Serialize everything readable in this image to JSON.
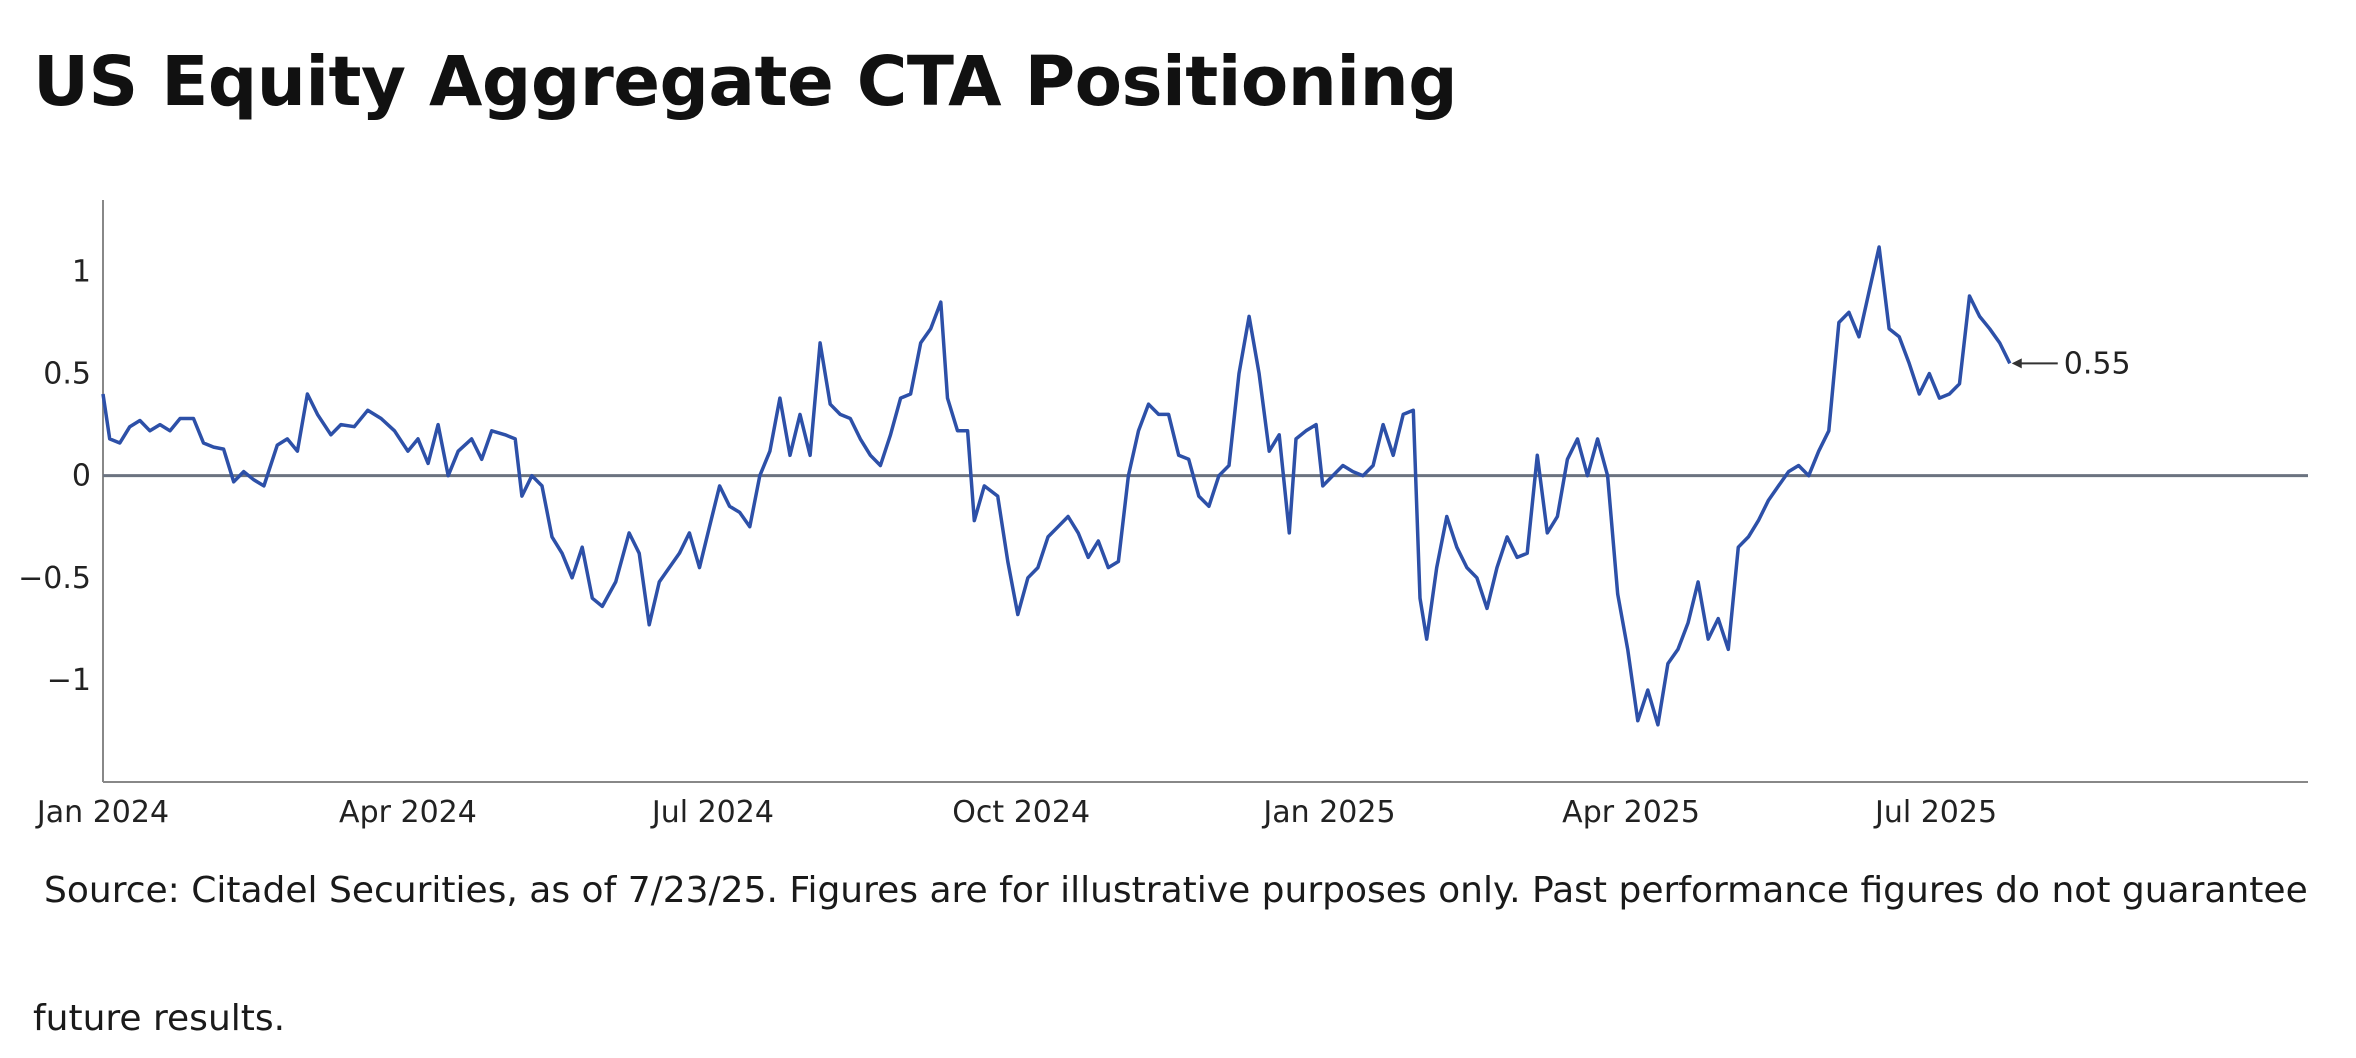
{
  "title": "US Equity Aggregate CTA Positioning",
  "source": {
    "line1": "Source: Citadel Securities, as of 7/23/25. Figures are for illustrative purposes only. Past performance figures do not guarantee",
    "line2": "future results."
  },
  "colors": {
    "series": "#2d50a8",
    "zero_line": "#6b7380",
    "axis": "#888888",
    "text": "#222222"
  },
  "chart_data": {
    "type": "line",
    "title": "",
    "xlabel": "",
    "ylabel": "",
    "x_ticks": [
      "Jan 2024",
      "Apr 2024",
      "Jul 2024",
      "Oct 2024",
      "Jan 2025",
      "Apr 2025",
      "Jul 2025"
    ],
    "x_tick_dates": [
      "2024-01-01",
      "2024-04-01",
      "2024-07-01",
      "2024-10-01",
      "2025-01-01",
      "2025-04-01",
      "2025-07-01"
    ],
    "y_ticks": [
      1,
      0.5,
      0,
      -0.5,
      -1
    ],
    "y_tick_labels": [
      "1",
      "0.5",
      "0",
      "−0.5",
      "−1"
    ],
    "xlim": [
      "2024-01-01",
      "2025-10-20"
    ],
    "ylim": [
      -1.5,
      1.35
    ],
    "zero_line": true,
    "grid": false,
    "last_value_label": "0.55",
    "series": [
      {
        "name": "",
        "points": [
          [
            "2024-01-01",
            0.4
          ],
          [
            "2024-01-03",
            0.18
          ],
          [
            "2024-01-06",
            0.16
          ],
          [
            "2024-01-09",
            0.24
          ],
          [
            "2024-01-12",
            0.27
          ],
          [
            "2024-01-15",
            0.22
          ],
          [
            "2024-01-18",
            0.25
          ],
          [
            "2024-01-21",
            0.22
          ],
          [
            "2024-01-24",
            0.28
          ],
          [
            "2024-01-28",
            0.28
          ],
          [
            "2024-01-31",
            0.16
          ],
          [
            "2024-02-03",
            0.14
          ],
          [
            "2024-02-06",
            0.13
          ],
          [
            "2024-02-09",
            -0.03
          ],
          [
            "2024-02-12",
            0.02
          ],
          [
            "2024-02-15",
            -0.02
          ],
          [
            "2024-02-18",
            -0.05
          ],
          [
            "2024-02-22",
            0.15
          ],
          [
            "2024-02-25",
            0.18
          ],
          [
            "2024-02-28",
            0.12
          ],
          [
            "2024-03-02",
            0.4
          ],
          [
            "2024-03-05",
            0.3
          ],
          [
            "2024-03-09",
            0.2
          ],
          [
            "2024-03-12",
            0.25
          ],
          [
            "2024-03-16",
            0.24
          ],
          [
            "2024-03-20",
            0.32
          ],
          [
            "2024-03-24",
            0.28
          ],
          [
            "2024-03-28",
            0.22
          ],
          [
            "2024-04-01",
            0.12
          ],
          [
            "2024-04-04",
            0.18
          ],
          [
            "2024-04-07",
            0.06
          ],
          [
            "2024-04-10",
            0.25
          ],
          [
            "2024-04-13",
            0.0
          ],
          [
            "2024-04-16",
            0.12
          ],
          [
            "2024-04-20",
            0.18
          ],
          [
            "2024-04-23",
            0.08
          ],
          [
            "2024-04-26",
            0.22
          ],
          [
            "2024-04-30",
            0.2
          ],
          [
            "2024-05-03",
            0.18
          ],
          [
            "2024-05-05",
            -0.1
          ],
          [
            "2024-05-08",
            0.0
          ],
          [
            "2024-05-11",
            -0.05
          ],
          [
            "2024-05-14",
            -0.3
          ],
          [
            "2024-05-17",
            -0.38
          ],
          [
            "2024-05-20",
            -0.5
          ],
          [
            "2024-05-23",
            -0.35
          ],
          [
            "2024-05-26",
            -0.6
          ],
          [
            "2024-05-29",
            -0.64
          ],
          [
            "2024-06-02",
            -0.52
          ],
          [
            "2024-06-06",
            -0.28
          ],
          [
            "2024-06-09",
            -0.38
          ],
          [
            "2024-06-12",
            -0.73
          ],
          [
            "2024-06-15",
            -0.52
          ],
          [
            "2024-06-18",
            -0.45
          ],
          [
            "2024-06-21",
            -0.38
          ],
          [
            "2024-06-24",
            -0.28
          ],
          [
            "2024-06-27",
            -0.45
          ],
          [
            "2024-06-30",
            -0.25
          ],
          [
            "2024-07-03",
            -0.05
          ],
          [
            "2024-07-06",
            -0.15
          ],
          [
            "2024-07-09",
            -0.18
          ],
          [
            "2024-07-12",
            -0.25
          ],
          [
            "2024-07-15",
            0.0
          ],
          [
            "2024-07-18",
            0.12
          ],
          [
            "2024-07-21",
            0.38
          ],
          [
            "2024-07-24",
            0.1
          ],
          [
            "2024-07-27",
            0.3
          ],
          [
            "2024-07-30",
            0.1
          ],
          [
            "2024-08-02",
            0.65
          ],
          [
            "2024-08-05",
            0.35
          ],
          [
            "2024-08-08",
            0.3
          ],
          [
            "2024-08-11",
            0.28
          ],
          [
            "2024-08-14",
            0.18
          ],
          [
            "2024-08-17",
            0.1
          ],
          [
            "2024-08-20",
            0.05
          ],
          [
            "2024-08-23",
            0.2
          ],
          [
            "2024-08-26",
            0.38
          ],
          [
            "2024-08-29",
            0.4
          ],
          [
            "2024-09-01",
            0.65
          ],
          [
            "2024-09-04",
            0.72
          ],
          [
            "2024-09-07",
            0.85
          ],
          [
            "2024-09-09",
            0.38
          ],
          [
            "2024-09-12",
            0.22
          ],
          [
            "2024-09-15",
            0.22
          ],
          [
            "2024-09-17",
            -0.22
          ],
          [
            "2024-09-20",
            -0.05
          ],
          [
            "2024-09-24",
            -0.1
          ],
          [
            "2024-09-27",
            -0.42
          ],
          [
            "2024-09-30",
            -0.68
          ],
          [
            "2024-10-03",
            -0.5
          ],
          [
            "2024-10-06",
            -0.45
          ],
          [
            "2024-10-09",
            -0.3
          ],
          [
            "2024-10-12",
            -0.25
          ],
          [
            "2024-10-15",
            -0.2
          ],
          [
            "2024-10-18",
            -0.28
          ],
          [
            "2024-10-21",
            -0.4
          ],
          [
            "2024-10-24",
            -0.32
          ],
          [
            "2024-10-27",
            -0.45
          ],
          [
            "2024-10-30",
            -0.42
          ],
          [
            "2024-11-02",
            0.0
          ],
          [
            "2024-11-05",
            0.22
          ],
          [
            "2024-11-08",
            0.35
          ],
          [
            "2024-11-11",
            0.3
          ],
          [
            "2024-11-14",
            0.3
          ],
          [
            "2024-11-17",
            0.1
          ],
          [
            "2024-11-20",
            0.08
          ],
          [
            "2024-11-23",
            -0.1
          ],
          [
            "2024-11-26",
            -0.15
          ],
          [
            "2024-11-29",
            0.0
          ],
          [
            "2024-12-02",
            0.05
          ],
          [
            "2024-12-05",
            0.5
          ],
          [
            "2024-12-08",
            0.78
          ],
          [
            "2024-12-11",
            0.5
          ],
          [
            "2024-12-14",
            0.12
          ],
          [
            "2024-12-17",
            0.2
          ],
          [
            "2024-12-20",
            -0.28
          ],
          [
            "2024-12-22",
            0.18
          ],
          [
            "2024-12-25",
            0.22
          ],
          [
            "2024-12-28",
            0.25
          ],
          [
            "2024-12-30",
            -0.05
          ],
          [
            "2025-01-02",
            0.0
          ],
          [
            "2025-01-05",
            0.05
          ],
          [
            "2025-01-08",
            0.02
          ],
          [
            "2025-01-11",
            0.0
          ],
          [
            "2025-01-14",
            0.05
          ],
          [
            "2025-01-17",
            0.25
          ],
          [
            "2025-01-20",
            0.1
          ],
          [
            "2025-01-23",
            0.3
          ],
          [
            "2025-01-26",
            0.32
          ],
          [
            "2025-01-28",
            -0.6
          ],
          [
            "2025-01-30",
            -0.8
          ],
          [
            "2025-02-02",
            -0.45
          ],
          [
            "2025-02-05",
            -0.2
          ],
          [
            "2025-02-08",
            -0.35
          ],
          [
            "2025-02-11",
            -0.45
          ],
          [
            "2025-02-14",
            -0.5
          ],
          [
            "2025-02-17",
            -0.65
          ],
          [
            "2025-02-20",
            -0.45
          ],
          [
            "2025-02-23",
            -0.3
          ],
          [
            "2025-02-26",
            -0.4
          ],
          [
            "2025-03-01",
            -0.38
          ],
          [
            "2025-03-04",
            0.1
          ],
          [
            "2025-03-07",
            -0.28
          ],
          [
            "2025-03-10",
            -0.2
          ],
          [
            "2025-03-13",
            0.08
          ],
          [
            "2025-03-16",
            0.18
          ],
          [
            "2025-03-19",
            0.0
          ],
          [
            "2025-03-22",
            0.18
          ],
          [
            "2025-03-25",
            0.0
          ],
          [
            "2025-03-28",
            -0.58
          ],
          [
            "2025-03-31",
            -0.85
          ],
          [
            "2025-04-03",
            -1.2
          ],
          [
            "2025-04-06",
            -1.05
          ],
          [
            "2025-04-09",
            -1.22
          ],
          [
            "2025-04-12",
            -0.92
          ],
          [
            "2025-04-15",
            -0.85
          ],
          [
            "2025-04-18",
            -0.72
          ],
          [
            "2025-04-21",
            -0.52
          ],
          [
            "2025-04-24",
            -0.8
          ],
          [
            "2025-04-27",
            -0.7
          ],
          [
            "2025-04-30",
            -0.85
          ],
          [
            "2025-05-03",
            -0.35
          ],
          [
            "2025-05-06",
            -0.3
          ],
          [
            "2025-05-09",
            -0.22
          ],
          [
            "2025-05-12",
            -0.12
          ],
          [
            "2025-05-15",
            -0.05
          ],
          [
            "2025-05-18",
            0.02
          ],
          [
            "2025-05-21",
            0.05
          ],
          [
            "2025-05-24",
            0.0
          ],
          [
            "2025-05-27",
            0.12
          ],
          [
            "2025-05-30",
            0.22
          ],
          [
            "2025-06-02",
            0.75
          ],
          [
            "2025-06-05",
            0.8
          ],
          [
            "2025-06-08",
            0.68
          ],
          [
            "2025-06-11",
            0.9
          ],
          [
            "2025-06-14",
            1.12
          ],
          [
            "2025-06-17",
            0.72
          ],
          [
            "2025-06-20",
            0.68
          ],
          [
            "2025-06-23",
            0.55
          ],
          [
            "2025-06-26",
            0.4
          ],
          [
            "2025-06-29",
            0.5
          ],
          [
            "2025-07-02",
            0.38
          ],
          [
            "2025-07-05",
            0.4
          ],
          [
            "2025-07-08",
            0.45
          ],
          [
            "2025-07-11",
            0.88
          ],
          [
            "2025-07-14",
            0.78
          ],
          [
            "2025-07-17",
            0.72
          ],
          [
            "2025-07-20",
            0.65
          ],
          [
            "2025-07-23",
            0.55
          ]
        ]
      }
    ]
  }
}
